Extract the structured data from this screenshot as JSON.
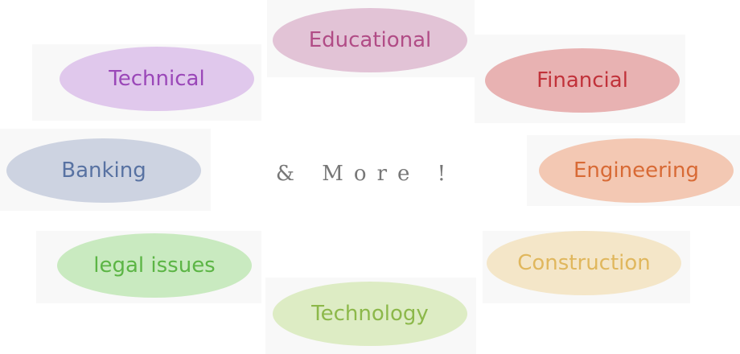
{
  "center_text": "& More !",
  "topics": [
    {
      "label": "Educational",
      "fill": "#e2c3d6",
      "text_color": "#b14c86"
    },
    {
      "label": "Technical",
      "fill": "#e0c8ec",
      "text_color": "#9a47b8"
    },
    {
      "label": "Financial",
      "fill": "#e8b2b2",
      "text_color": "#c1323a"
    },
    {
      "label": "Banking",
      "fill": "#cdd3e1",
      "text_color": "#5872a2"
    },
    {
      "label": "Engineering",
      "fill": "#f3c8b3",
      "text_color": "#d86a35"
    },
    {
      "label": "legal issues",
      "fill": "#c9eac0",
      "text_color": "#5cb545"
    },
    {
      "label": "Construction",
      "fill": "#f4e6c8",
      "text_color": "#e0b75d"
    },
    {
      "label": "Technology",
      "fill": "#ddecc4",
      "text_color": "#8cb84a"
    }
  ]
}
